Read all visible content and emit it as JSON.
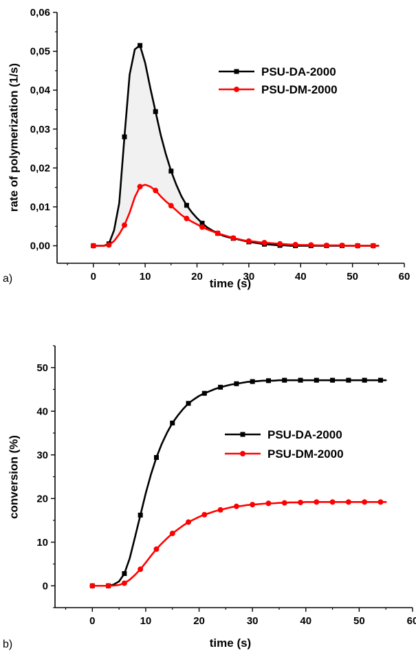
{
  "chart_data": [
    {
      "type": "line",
      "panel_label": "a)",
      "title": "",
      "xlabel": "time (s)",
      "ylabel": "rate of polymerization (1/s)",
      "xlim": [
        -7,
        60
      ],
      "ylim": [
        -0.0045,
        0.06
      ],
      "x_ticks": [
        0,
        10,
        20,
        30,
        40,
        50,
        60
      ],
      "x_tick_labels": [
        "0",
        "10",
        "20",
        "30",
        "40",
        "50",
        "60"
      ],
      "y_ticks": [
        0,
        0.01,
        0.02,
        0.03,
        0.04,
        0.05,
        0.06
      ],
      "y_tick_labels": [
        "0,00",
        "0,01",
        "0,02",
        "0,03",
        "0,04",
        "0,05",
        "0,06"
      ],
      "grid": false,
      "legend_position": "top-right",
      "fill_between_series": true,
      "series": [
        {
          "name": "PSU-DA-2000",
          "color": "#000000",
          "marker": "square",
          "x": [
            0,
            3,
            6,
            9,
            12,
            15,
            18,
            21,
            24,
            27,
            30,
            33,
            36,
            39,
            42,
            45,
            48,
            51,
            54
          ],
          "values": [
            0,
            0.0005,
            0.028,
            0.0515,
            0.0345,
            0.0192,
            0.0104,
            0.0058,
            0.0032,
            0.0019,
            0.001,
            0.0004,
            0.0001,
            0.0,
            0.0,
            0.0,
            0.0,
            0.0,
            0.0
          ],
          "curve_x": [
            0,
            1,
            2,
            3,
            4,
            5,
            6,
            7,
            8,
            9,
            10,
            11,
            12,
            13,
            14,
            15,
            16,
            17,
            18,
            19,
            20,
            21,
            22,
            23,
            24,
            25,
            26,
            27,
            28,
            29,
            30,
            31,
            32,
            33,
            34,
            35,
            36,
            37,
            38,
            39,
            40,
            41,
            42,
            43,
            44,
            45,
            46,
            47,
            48,
            49,
            50,
            51,
            52,
            53,
            54,
            55
          ],
          "curve_y": [
            0,
            0,
            0,
            0.0005,
            0.004,
            0.011,
            0.028,
            0.044,
            0.0505,
            0.0515,
            0.047,
            0.0405,
            0.0345,
            0.0285,
            0.0235,
            0.0192,
            0.0157,
            0.0127,
            0.0104,
            0.0086,
            0.0071,
            0.0058,
            0.0047,
            0.0039,
            0.0032,
            0.0026,
            0.0022,
            0.0019,
            0.0016,
            0.0013,
            0.001,
            0.0008,
            0.0006,
            0.0004,
            0.0003,
            0.0002,
            0.0001,
            0.0001,
            0.0,
            0.0,
            0.0,
            0.0,
            0.0,
            0.0,
            0.0,
            0.0,
            0.0,
            0.0,
            0.0,
            0.0,
            0.0,
            0.0,
            0.0,
            0.0,
            0.0,
            0.0
          ]
        },
        {
          "name": "PSU-DM-2000",
          "color": "#ff0000",
          "marker": "circle",
          "x": [
            0,
            3,
            6,
            9,
            12,
            15,
            18,
            21,
            24,
            27,
            30,
            33,
            36,
            39,
            42,
            45,
            48,
            51,
            54
          ],
          "values": [
            0,
            0.0002,
            0.0053,
            0.0152,
            0.0142,
            0.0103,
            0.007,
            0.0048,
            0.0032,
            0.002,
            0.0012,
            0.0008,
            0.0005,
            0.0003,
            0.0002,
            0.0001,
            0.0001,
            0.0,
            0.0
          ],
          "curve_x": [
            0,
            1,
            2,
            3,
            4,
            5,
            6,
            7,
            8,
            9,
            10,
            11,
            12,
            13,
            14,
            15,
            16,
            17,
            18,
            19,
            20,
            21,
            22,
            23,
            24,
            25,
            26,
            27,
            28,
            29,
            30,
            31,
            32,
            33,
            34,
            35,
            36,
            37,
            38,
            39,
            40,
            41,
            42,
            43,
            44,
            45,
            46,
            47,
            48,
            49,
            50,
            51,
            52,
            53,
            54,
            55
          ],
          "curve_y": [
            0,
            0,
            0,
            0.0002,
            0.0012,
            0.003,
            0.0053,
            0.0085,
            0.0125,
            0.0152,
            0.0157,
            0.0152,
            0.0142,
            0.0127,
            0.0114,
            0.0103,
            0.0091,
            0.0079,
            0.007,
            0.0062,
            0.0055,
            0.0048,
            0.0042,
            0.0037,
            0.0032,
            0.0028,
            0.0024,
            0.002,
            0.0017,
            0.0014,
            0.0012,
            0.0011,
            0.0009,
            0.0008,
            0.0007,
            0.0006,
            0.0005,
            0.0004,
            0.0003,
            0.0003,
            0.0002,
            0.0002,
            0.0002,
            0.0001,
            0.0001,
            0.0001,
            0.0001,
            0.0001,
            0.0001,
            0.0,
            0.0,
            0.0,
            0.0,
            0.0,
            0.0,
            0.0
          ]
        }
      ]
    },
    {
      "type": "line",
      "panel_label": "b)",
      "title": "",
      "xlabel": "time (s)",
      "ylabel": "conversion (%)",
      "xlim": [
        -7,
        60
      ],
      "ylim": [
        -5,
        55
      ],
      "x_ticks": [
        0,
        10,
        20,
        30,
        40,
        50,
        60
      ],
      "x_tick_labels": [
        "0",
        "10",
        "20",
        "30",
        "40",
        "50",
        "60"
      ],
      "y_ticks": [
        0,
        10,
        20,
        30,
        40,
        50
      ],
      "y_tick_labels": [
        "0",
        "10",
        "20",
        "30",
        "40",
        "50"
      ],
      "grid": false,
      "legend_position": "center-right",
      "fill_between_series": false,
      "series": [
        {
          "name": "PSU-DA-2000",
          "color": "#000000",
          "marker": "square",
          "x": [
            0,
            3,
            6,
            9,
            12,
            15,
            18,
            21,
            24,
            27,
            30,
            33,
            36,
            39,
            42,
            45,
            48,
            51,
            54
          ],
          "values": [
            0,
            0,
            2.8,
            16.2,
            29.4,
            37.3,
            41.8,
            44.1,
            45.5,
            46.3,
            46.8,
            47.0,
            47.1,
            47.1,
            47.1,
            47.1,
            47.1,
            47.1,
            47.1
          ],
          "curve_x": [
            0,
            1,
            2,
            3,
            4,
            5,
            6,
            7,
            8,
            9,
            10,
            11,
            12,
            13,
            14,
            15,
            16,
            17,
            18,
            19,
            20,
            21,
            22,
            23,
            24,
            25,
            26,
            27,
            28,
            29,
            30,
            31,
            32,
            33,
            34,
            35,
            36,
            37,
            38,
            39,
            40,
            41,
            42,
            43,
            44,
            45,
            46,
            47,
            48,
            49,
            50,
            51,
            52,
            53,
            54,
            55
          ],
          "curve_y": [
            0,
            0,
            0,
            0,
            0.3,
            1.0,
            2.8,
            6.3,
            11.2,
            16.2,
            21.2,
            25.6,
            29.4,
            32.5,
            35.1,
            37.3,
            39.0,
            40.5,
            41.8,
            42.7,
            43.5,
            44.1,
            44.6,
            45.1,
            45.5,
            45.8,
            46.1,
            46.3,
            46.5,
            46.7,
            46.8,
            46.9,
            47.0,
            47.0,
            47.0,
            47.1,
            47.1,
            47.1,
            47.1,
            47.1,
            47.1,
            47.1,
            47.1,
            47.1,
            47.1,
            47.1,
            47.1,
            47.1,
            47.1,
            47.1,
            47.1,
            47.1,
            47.1,
            47.1,
            47.1,
            47.1
          ]
        },
        {
          "name": "PSU-DM-2000",
          "color": "#ff0000",
          "marker": "circle",
          "x": [
            0,
            3,
            6,
            9,
            12,
            15,
            18,
            21,
            24,
            27,
            30,
            33,
            36,
            39,
            42,
            45,
            48,
            51,
            54
          ],
          "values": [
            0,
            0,
            0.6,
            3.8,
            8.4,
            12.0,
            14.6,
            16.3,
            17.4,
            18.2,
            18.6,
            18.9,
            19.0,
            19.1,
            19.2,
            19.2,
            19.2,
            19.2,
            19.2
          ],
          "curve_x": [
            0,
            1,
            2,
            3,
            4,
            5,
            6,
            7,
            8,
            9,
            10,
            11,
            12,
            13,
            14,
            15,
            16,
            17,
            18,
            19,
            20,
            21,
            22,
            23,
            24,
            25,
            26,
            27,
            28,
            29,
            30,
            31,
            32,
            33,
            34,
            35,
            36,
            37,
            38,
            39,
            40,
            41,
            42,
            43,
            44,
            45,
            46,
            47,
            48,
            49,
            50,
            51,
            52,
            53,
            54,
            55
          ],
          "curve_y": [
            0,
            0,
            0,
            0,
            0.05,
            0.2,
            0.6,
            1.4,
            2.5,
            3.8,
            5.3,
            6.9,
            8.4,
            9.7,
            10.9,
            12.0,
            12.9,
            13.8,
            14.6,
            15.2,
            15.8,
            16.3,
            16.7,
            17.1,
            17.4,
            17.7,
            18.0,
            18.2,
            18.3,
            18.5,
            18.6,
            18.7,
            18.8,
            18.9,
            18.9,
            19.0,
            19.0,
            19.1,
            19.1,
            19.1,
            19.2,
            19.2,
            19.2,
            19.2,
            19.2,
            19.2,
            19.2,
            19.2,
            19.2,
            19.2,
            19.2,
            19.2,
            19.2,
            19.2,
            19.2,
            19.2
          ]
        }
      ]
    }
  ]
}
